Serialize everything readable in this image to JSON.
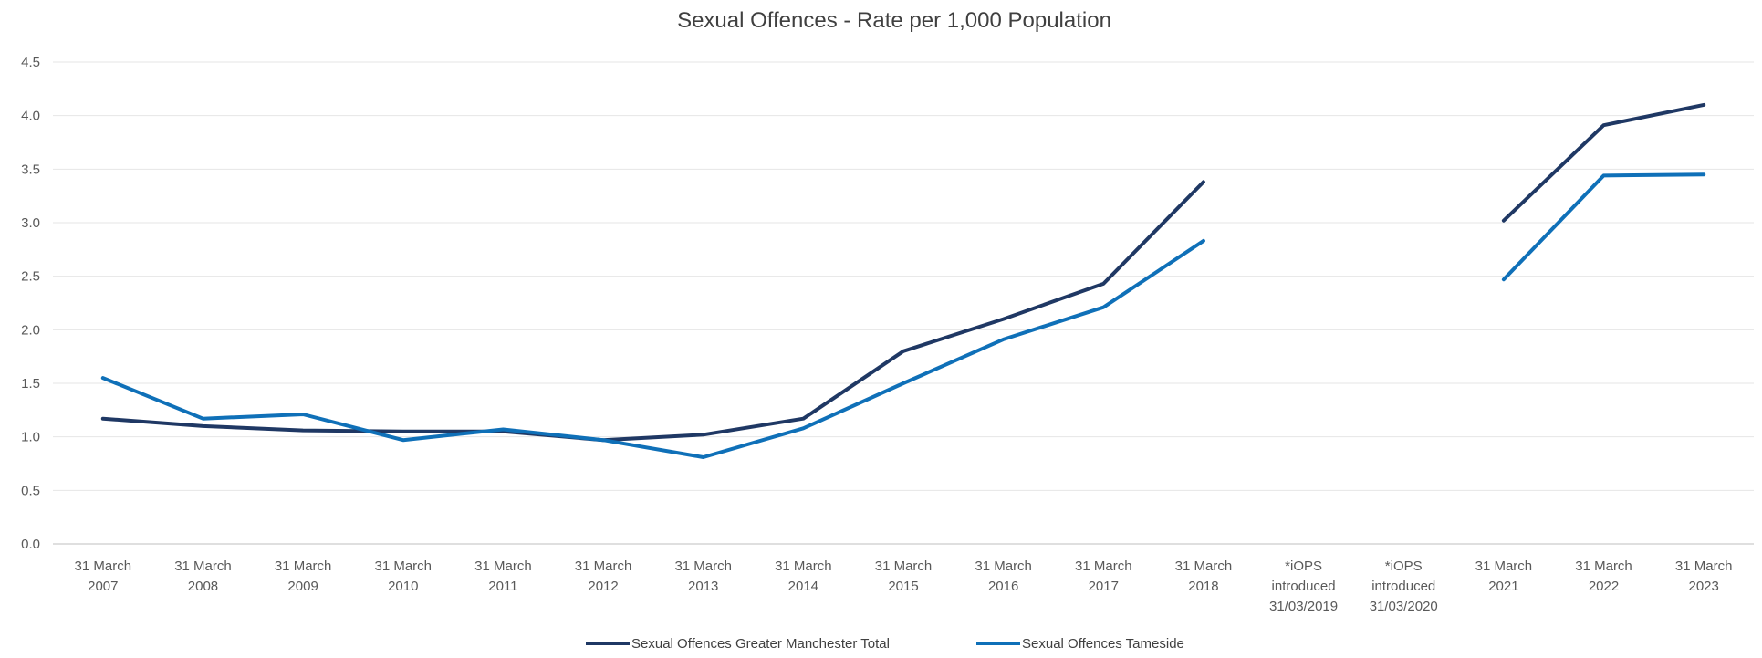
{
  "chart_data": {
    "type": "line",
    "title": "Sexual Offences - Rate per 1,000 Population",
    "xlabel": "",
    "ylabel": "",
    "ylim": [
      0,
      4.5
    ],
    "yticks": [
      "0.0",
      "0.5",
      "1.0",
      "1.5",
      "2.0",
      "2.5",
      "3.0",
      "3.5",
      "4.0",
      "4.5"
    ],
    "categories": [
      [
        "31 March",
        "2007"
      ],
      [
        "31 March",
        "2008"
      ],
      [
        "31 March",
        "2009"
      ],
      [
        "31 March",
        "2010"
      ],
      [
        "31 March",
        "2011"
      ],
      [
        "31 March",
        "2012"
      ],
      [
        "31 March",
        "2013"
      ],
      [
        "31 March",
        "2014"
      ],
      [
        "31 March",
        "2015"
      ],
      [
        "31 March",
        "2016"
      ],
      [
        "31 March",
        "2017"
      ],
      [
        "31 March",
        "2018"
      ],
      [
        "*iOPS",
        "introduced",
        "31/03/2019"
      ],
      [
        "*iOPS",
        "introduced",
        "31/03/2020"
      ],
      [
        "31 March",
        "2021"
      ],
      [
        "31 March",
        "2022"
      ],
      [
        "31 March",
        "2023"
      ]
    ],
    "grid": true,
    "legend_position": "bottom",
    "series": [
      {
        "name": "Sexual Offences Greater Manchester Total",
        "color": "#1f3864",
        "values": [
          1.17,
          1.1,
          1.06,
          1.05,
          1.05,
          0.97,
          1.02,
          1.17,
          1.8,
          2.1,
          2.43,
          3.38,
          null,
          null,
          3.02,
          3.91,
          4.1
        ]
      },
      {
        "name": "Sexual Offences Tameside",
        "color": "#0f70b8",
        "values": [
          1.55,
          1.17,
          1.21,
          0.97,
          1.07,
          0.97,
          0.81,
          1.08,
          1.5,
          1.91,
          2.21,
          2.83,
          null,
          null,
          2.47,
          3.44,
          3.45
        ]
      }
    ]
  }
}
